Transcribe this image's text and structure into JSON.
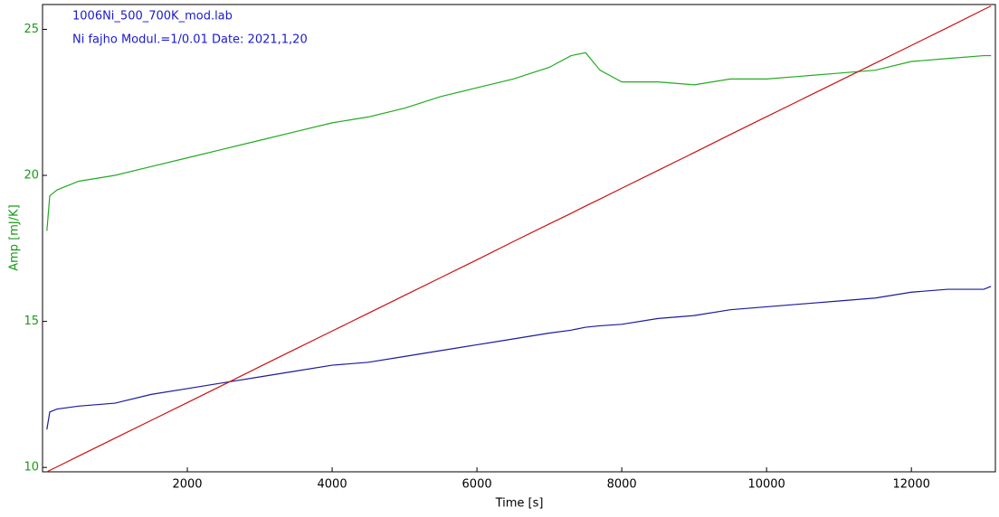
{
  "chart_data": {
    "type": "line",
    "annotations": [
      "1006Ni_500_700K_mod.lab",
      "Ni fajho Modul.=1/0.01 Date: 2021,1,20"
    ],
    "annotation_color": "#1a1ad0",
    "x_label": "Time [s]",
    "y_label": "Amp [mJ/K]",
    "y_axis_color": "#1a9a1a",
    "xlim": [
      0,
      13160
    ],
    "ylim": [
      9.85,
      25.85
    ],
    "xticks": [
      2000,
      4000,
      6000,
      8000,
      10000,
      12000
    ],
    "yticks": [
      10,
      15,
      20,
      25
    ],
    "x": [
      60,
      100,
      200,
      500,
      1000,
      1500,
      2000,
      2500,
      3000,
      3500,
      4000,
      4500,
      5000,
      5500,
      6000,
      6500,
      7000,
      7300,
      7500,
      7700,
      8000,
      8500,
      9000,
      9500,
      10000,
      10500,
      11000,
      11500,
      12000,
      12500,
      13000,
      13100
    ],
    "series": [
      {
        "color": "#22aa22",
        "values": [
          18.1,
          19.3,
          19.5,
          19.8,
          20.0,
          20.3,
          20.6,
          20.9,
          21.2,
          21.5,
          21.8,
          22.0,
          22.3,
          22.7,
          23.0,
          23.3,
          23.7,
          24.1,
          24.2,
          23.6,
          23.2,
          23.2,
          23.1,
          23.3,
          23.3,
          23.4,
          23.5,
          23.6,
          23.9,
          24.0,
          24.1,
          24.1
        ]
      },
      {
        "color": "#1a1aa0",
        "values": [
          11.3,
          11.9,
          12.0,
          12.1,
          12.2,
          12.5,
          12.7,
          12.9,
          13.1,
          13.3,
          13.5,
          13.6,
          13.8,
          14.0,
          14.2,
          14.4,
          14.6,
          14.7,
          14.8,
          14.85,
          14.9,
          15.1,
          15.2,
          15.4,
          15.5,
          15.6,
          15.7,
          15.8,
          16.0,
          16.1,
          16.1,
          16.2
        ]
      },
      {
        "color": "#cc1111",
        "values": [
          9.85,
          9.9,
          10.02,
          10.39,
          11.0,
          11.61,
          12.22,
          12.83,
          13.45,
          14.06,
          14.67,
          15.28,
          15.89,
          16.5,
          17.11,
          17.73,
          18.34,
          18.7,
          18.95,
          19.19,
          19.56,
          20.17,
          20.78,
          21.4,
          22.01,
          22.62,
          23.23,
          23.84,
          24.45,
          25.06,
          25.68,
          25.8
        ]
      }
    ]
  }
}
